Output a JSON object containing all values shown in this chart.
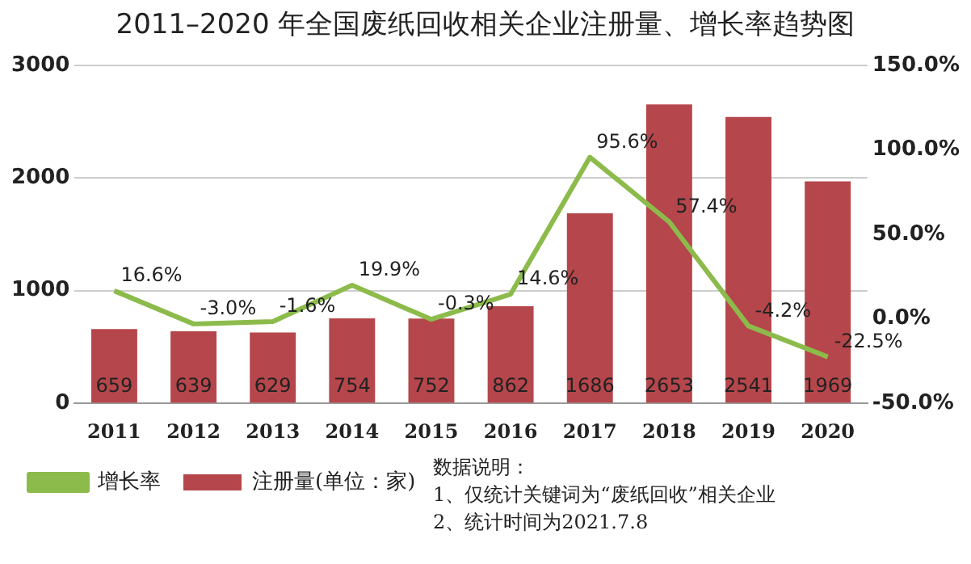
{
  "chart_data": {
    "type": "bar",
    "title": "2011–2020 年全国废纸回收相关企业注册量、增长率趋势图",
    "categories": [
      "2011",
      "2012",
      "2013",
      "2014",
      "2015",
      "2016",
      "2017",
      "2018",
      "2019",
      "2020"
    ],
    "series": [
      {
        "name": "注册量(单位：家)",
        "color": "#b5464b",
        "values": [
          659,
          639,
          629,
          754,
          752,
          862,
          1686,
          2653,
          2541,
          1969
        ],
        "value_labels": [
          "659",
          "639",
          "629",
          "754",
          "752",
          "862",
          "1686",
          "2653",
          "2541",
          "1969"
        ]
      },
      {
        "name": "增长率",
        "type": "line",
        "axis": "y2",
        "color": "#8cbb4c",
        "values": [
          16.6,
          -3.0,
          -1.6,
          19.9,
          -0.3,
          14.6,
          95.6,
          57.4,
          -4.2,
          -22.5
        ],
        "value_labels": [
          "16.6%",
          "-3.0%",
          "-1.6%",
          "19.9%",
          "-0.3%",
          "14.6%",
          "95.6%",
          "57.4%",
          "-4.2%",
          "-22.5%"
        ]
      }
    ],
    "ylim": [
      0,
      3000
    ],
    "yticks": [
      0,
      1000,
      2000,
      3000
    ],
    "y2lim": [
      -50,
      150
    ],
    "y2ticks": [
      {
        "value": -50,
        "label": "-50.0%"
      },
      {
        "value": 0,
        "label": "0.0%"
      },
      {
        "value": 50,
        "label": "50.0%"
      },
      {
        "value": 100,
        "label": "100.0%"
      },
      {
        "value": 150,
        "label": "150.0%"
      }
    ],
    "grid": "y",
    "legend": "bottom left",
    "marker": "none",
    "annotations": [
      "数据说明：",
      "1、仅统计关键词为“废纸回收”相关企业",
      "2、统计时间为2021.7.8"
    ]
  }
}
